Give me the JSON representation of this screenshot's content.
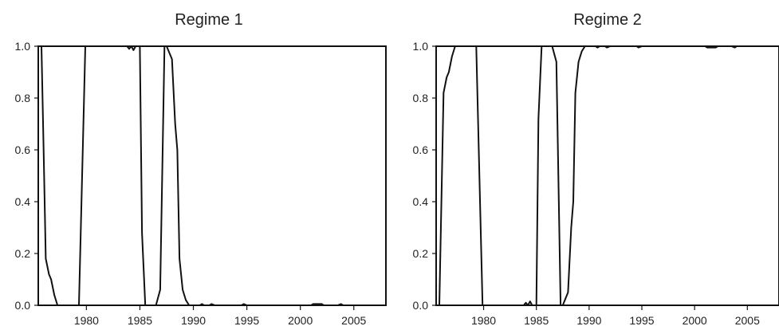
{
  "chart_data": [
    {
      "type": "line",
      "title": "Regime 1",
      "xlabel": "",
      "ylabel": "",
      "xlim": [
        1975.5,
        2008
      ],
      "ylim": [
        0,
        1
      ],
      "x_ticks": [
        1980,
        1985,
        1990,
        1995,
        2000,
        2005
      ],
      "y_ticks": [
        0.0,
        0.2,
        0.4,
        0.6,
        0.8,
        1.0
      ],
      "x_tick_labels": [
        "1980",
        "1985",
        "1990",
        "1995",
        "2000",
        "2005"
      ],
      "y_tick_labels": [
        "0.0",
        "0.2",
        "0.4",
        "0.6",
        "0.8",
        "1.0"
      ],
      "grid": false,
      "series": [
        {
          "x": [
            1975.6,
            1975.8,
            1976.0,
            1976.2,
            1976.5,
            1976.7,
            1977.0,
            1977.3,
            1977.6,
            1979.3,
            1979.9,
            1983.8,
            1984.0,
            1984.2,
            1984.4,
            1984.6,
            1985.0,
            1985.2,
            1985.5,
            1986.5,
            1986.9,
            1987.3,
            1987.5,
            1988.0,
            1988.3,
            1988.5,
            1988.7,
            1989.0,
            1989.3,
            1989.6,
            1990.0,
            1990.6,
            1990.8,
            1991.0,
            1991.5,
            1991.7,
            1992.0,
            1994.5,
            1994.7,
            1995.0,
            2001.0,
            2001.2,
            2001.5,
            2002.0,
            2002.2,
            2003.5,
            2003.8,
            2004.0,
            2008.0
          ],
          "y": [
            1.0,
            1.0,
            0.6,
            0.18,
            0.12,
            0.1,
            0.04,
            0.0,
            0.0,
            0.0,
            1.0,
            1.0,
            0.99,
            1.0,
            0.985,
            1.0,
            1.0,
            0.28,
            0.0,
            0.0,
            0.06,
            1.0,
            1.0,
            0.95,
            0.7,
            0.6,
            0.18,
            0.06,
            0.02,
            0.0,
            0.0,
            0.0,
            0.005,
            0.0,
            0.0,
            0.005,
            0.0,
            0.0,
            0.005,
            0.0,
            0.0,
            0.005,
            0.005,
            0.005,
            0.0,
            0.0,
            0.005,
            0.0,
            0.0
          ]
        }
      ]
    },
    {
      "type": "line",
      "title": "Regime 2",
      "xlabel": "",
      "ylabel": "",
      "xlim": [
        1975.5,
        2008
      ],
      "ylim": [
        0,
        1
      ],
      "x_ticks": [
        1980,
        1985,
        1990,
        1995,
        2000,
        2005
      ],
      "y_ticks": [
        0.0,
        0.2,
        0.4,
        0.6,
        0.8,
        1.0
      ],
      "x_tick_labels": [
        "1980",
        "1985",
        "1990",
        "1995",
        "2000",
        "2005"
      ],
      "y_tick_labels": [
        "0.0",
        "0.2",
        "0.4",
        "0.6",
        "0.8",
        "1.0"
      ],
      "grid": false,
      "series": [
        {
          "x": [
            1975.6,
            1975.8,
            1976.0,
            1976.2,
            1976.5,
            1976.7,
            1977.0,
            1977.3,
            1977.6,
            1979.3,
            1979.9,
            1983.8,
            1984.0,
            1984.2,
            1984.4,
            1984.6,
            1985.0,
            1985.2,
            1985.5,
            1986.5,
            1986.9,
            1987.3,
            1987.5,
            1988.0,
            1988.3,
            1988.5,
            1988.7,
            1989.0,
            1989.3,
            1989.6,
            1990.0,
            1990.6,
            1990.8,
            1991.0,
            1991.5,
            1991.7,
            1992.0,
            1994.5,
            1994.7,
            1995.0,
            2001.0,
            2001.2,
            2001.5,
            2002.0,
            2002.2,
            2003.5,
            2003.8,
            2004.0,
            2008.0
          ],
          "y": [
            0.0,
            0.0,
            0.4,
            0.82,
            0.88,
            0.9,
            0.96,
            1.0,
            1.0,
            1.0,
            0.0,
            0.0,
            0.01,
            0.0,
            0.015,
            0.0,
            0.0,
            0.72,
            1.0,
            1.0,
            0.94,
            0.0,
            0.0,
            0.05,
            0.3,
            0.4,
            0.82,
            0.94,
            0.98,
            1.0,
            1.0,
            1.0,
            0.995,
            1.0,
            1.0,
            0.995,
            1.0,
            1.0,
            0.995,
            1.0,
            1.0,
            0.995,
            0.995,
            0.995,
            1.0,
            1.0,
            0.995,
            1.0,
            1.0
          ]
        }
      ]
    }
  ]
}
